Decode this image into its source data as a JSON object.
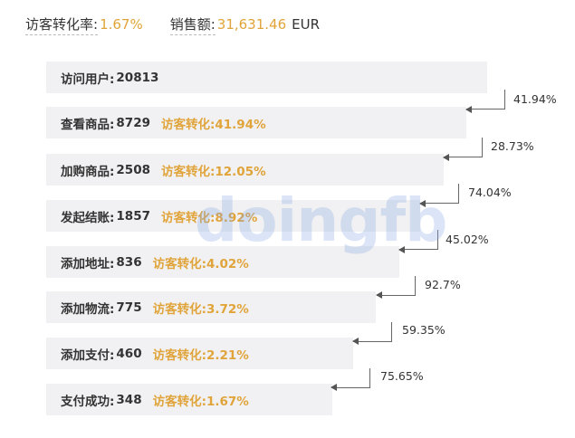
{
  "summary": {
    "visitor_conversion_label": "访客转化率:",
    "visitor_conversion_value": "1.67%",
    "sales_label": "销售额:",
    "sales_value": "31,631.46",
    "sales_currency": "EUR"
  },
  "funnel": [
    {
      "name": "访问用户:",
      "count": "20813",
      "conv_label": "",
      "conv_value": ""
    },
    {
      "name": "查看商品:",
      "count": "8729",
      "conv_label": "访客转化:",
      "conv_value": "41.94%"
    },
    {
      "name": "加购商品:",
      "count": "2508",
      "conv_label": "访客转化:",
      "conv_value": "12.05%"
    },
    {
      "name": "发起结账:",
      "count": "1857",
      "conv_label": "访客转化:",
      "conv_value": "8.92%"
    },
    {
      "name": "添加地址:",
      "count": "836",
      "conv_label": "访客转化:",
      "conv_value": "4.02%"
    },
    {
      "name": "添加物流:",
      "count": "775",
      "conv_label": "访客转化:",
      "conv_value": "3.72%"
    },
    {
      "name": "添加支付:",
      "count": "460",
      "conv_label": "访客转化:",
      "conv_value": "2.21%"
    },
    {
      "name": "支付成功:",
      "count": "348",
      "conv_label": "访客转化:",
      "conv_value": "1.67%"
    }
  ],
  "step_rates": [
    "41.94%",
    "28.73%",
    "74.04%",
    "45.02%",
    "92.7%",
    "59.35%",
    "75.65%"
  ],
  "watermark": "doingfb",
  "colors": {
    "accent": "#e0a43a",
    "bar_bg": "#f1f1f3",
    "text": "#333333",
    "connector": "#666666"
  }
}
